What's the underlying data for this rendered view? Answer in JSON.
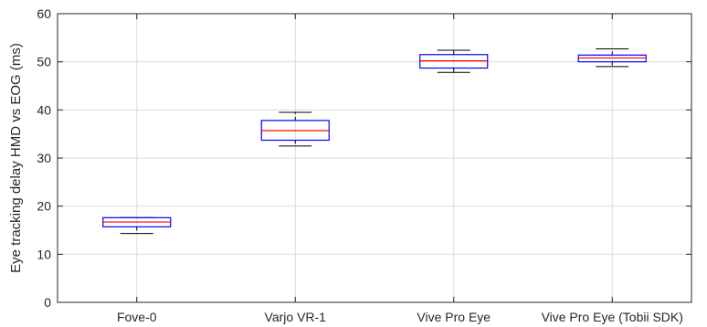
{
  "chart_data": {
    "type": "box",
    "title": "",
    "xlabel": "",
    "ylabel": "Eye tracking delay HMD vs EOG (ms)",
    "ylim": [
      0,
      60
    ],
    "yticks": [
      "0",
      "10",
      "20",
      "30",
      "40",
      "50",
      "60"
    ],
    "grid": true,
    "categories": [
      "Fove-0",
      "Varjo VR-1",
      "Vive Pro Eye",
      "Vive Pro Eye (Tobii SDK)"
    ],
    "boxes": [
      {
        "category": "Fove-0",
        "whisker_low": 14.3,
        "q1": 15.7,
        "median": 16.7,
        "q3": 17.6,
        "whisker_high": 17.6
      },
      {
        "category": "Varjo VR-1",
        "whisker_low": 32.5,
        "q1": 33.7,
        "median": 35.7,
        "q3": 37.8,
        "whisker_high": 39.5
      },
      {
        "category": "Vive Pro Eye",
        "whisker_low": 47.8,
        "q1": 48.7,
        "median": 50.2,
        "q3": 51.5,
        "whisker_high": 52.4
      },
      {
        "category": "Vive Pro Eye (Tobii SDK)",
        "whisker_low": 49.0,
        "q1": 50.0,
        "median": 50.8,
        "q3": 51.4,
        "whisker_high": 52.7
      }
    ],
    "colors": {
      "box": "#0000ff",
      "median": "#ff0000",
      "whisker": "#000000",
      "grid": "#dcdcdc",
      "axis": "#262626"
    }
  }
}
